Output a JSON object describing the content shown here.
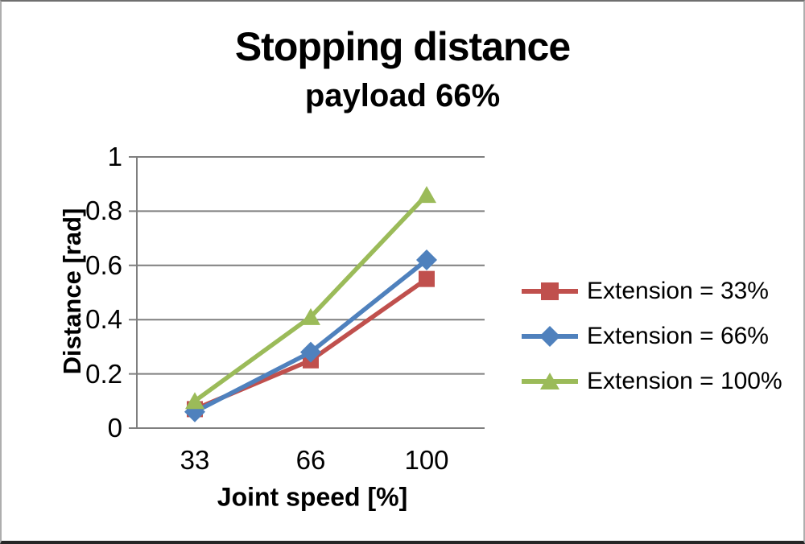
{
  "chart_data": {
    "type": "line",
    "title": "Stopping distance",
    "subtitle": "payload 66%",
    "xlabel": "Joint speed [%]",
    "ylabel": "Distance [rad]",
    "categories": [
      "33",
      "66",
      "100"
    ],
    "x_values": [
      33,
      66,
      100
    ],
    "series": [
      {
        "name": "Extension = 33%",
        "marker": "square",
        "color": "#C0504D",
        "values": [
          0.07,
          0.25,
          0.55
        ]
      },
      {
        "name": "Extension = 66%",
        "marker": "diamond",
        "color": "#4F81BD",
        "values": [
          0.06,
          0.28,
          0.62
        ]
      },
      {
        "name": "Extension = 100%",
        "marker": "triangle",
        "color": "#9BBB59",
        "values": [
          0.1,
          0.41,
          0.86
        ]
      }
    ],
    "ylim": [
      0,
      1
    ],
    "yticks": [
      0,
      0.2,
      0.4,
      0.6,
      0.8,
      1
    ],
    "ytick_labels": [
      "0",
      "0.2",
      "0.4",
      "0.6",
      "0.8",
      "1"
    ],
    "grid": "horizontal",
    "grid_color": "#7F7F7F",
    "text_color": "#000000",
    "legend_position": "right"
  }
}
